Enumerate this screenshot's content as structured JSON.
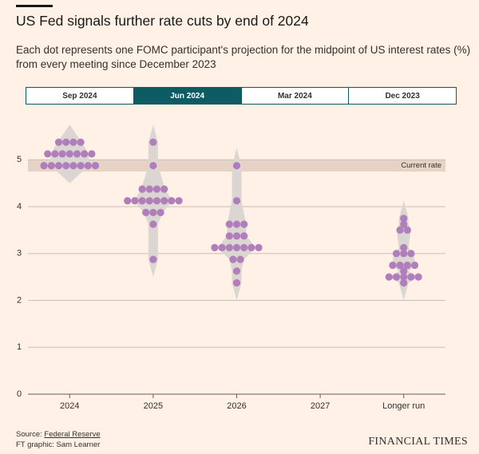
{
  "header": {
    "title": "US Fed signals further rate cuts by end of 2024",
    "subtitle": "Each dot represents one FOMC participant's projection for the midpoint of US interest rates (%) from every meeting since December 2023"
  },
  "tabs": [
    {
      "label": "Sep 2024",
      "selected": false
    },
    {
      "label": "Jun 2024",
      "selected": true
    },
    {
      "label": "Mar 2024",
      "selected": false
    },
    {
      "label": "Dec 2023",
      "selected": false
    }
  ],
  "chart_data": {
    "type": "dot",
    "categories": [
      "2024",
      "2025",
      "2026",
      "2027",
      "Longer run"
    ],
    "values": [
      [
        5.375,
        5.375,
        5.375,
        5.375,
        5.125,
        5.125,
        5.125,
        5.125,
        5.125,
        5.125,
        5.125,
        4.875,
        4.875,
        4.875,
        4.875,
        4.875,
        4.875,
        4.875,
        4.875
      ],
      [
        5.375,
        4.875,
        4.375,
        4.375,
        4.375,
        4.375,
        4.125,
        4.125,
        4.125,
        4.125,
        4.125,
        4.125,
        4.125,
        4.125,
        3.875,
        3.875,
        3.875,
        3.625,
        2.875
      ],
      [
        4.875,
        4.125,
        3.625,
        3.625,
        3.625,
        3.375,
        3.375,
        3.375,
        3.125,
        3.125,
        3.125,
        3.125,
        3.125,
        3.125,
        3.125,
        2.875,
        2.875,
        2.625,
        2.375
      ],
      [],
      [
        3.75,
        3.625,
        3.5,
        3.5,
        3.125,
        3.0,
        3.0,
        3.0,
        2.75,
        2.75,
        2.75,
        2.75,
        2.625,
        2.5,
        2.5,
        2.5,
        2.5,
        2.5,
        2.375
      ]
    ],
    "color": "#b07fbb",
    "ylim": [
      0,
      5.6
    ],
    "yticks": [
      0,
      1,
      2,
      3,
      4,
      5
    ],
    "grid": true,
    "current_rate": {
      "label": "Current rate",
      "range": [
        4.75,
        5
      ]
    }
  },
  "footer": {
    "source_prefix": "Source: ",
    "source_link": "Federal Reserve",
    "credit": "FT graphic: Sam Learner",
    "brand": "FINANCIAL TIMES"
  }
}
